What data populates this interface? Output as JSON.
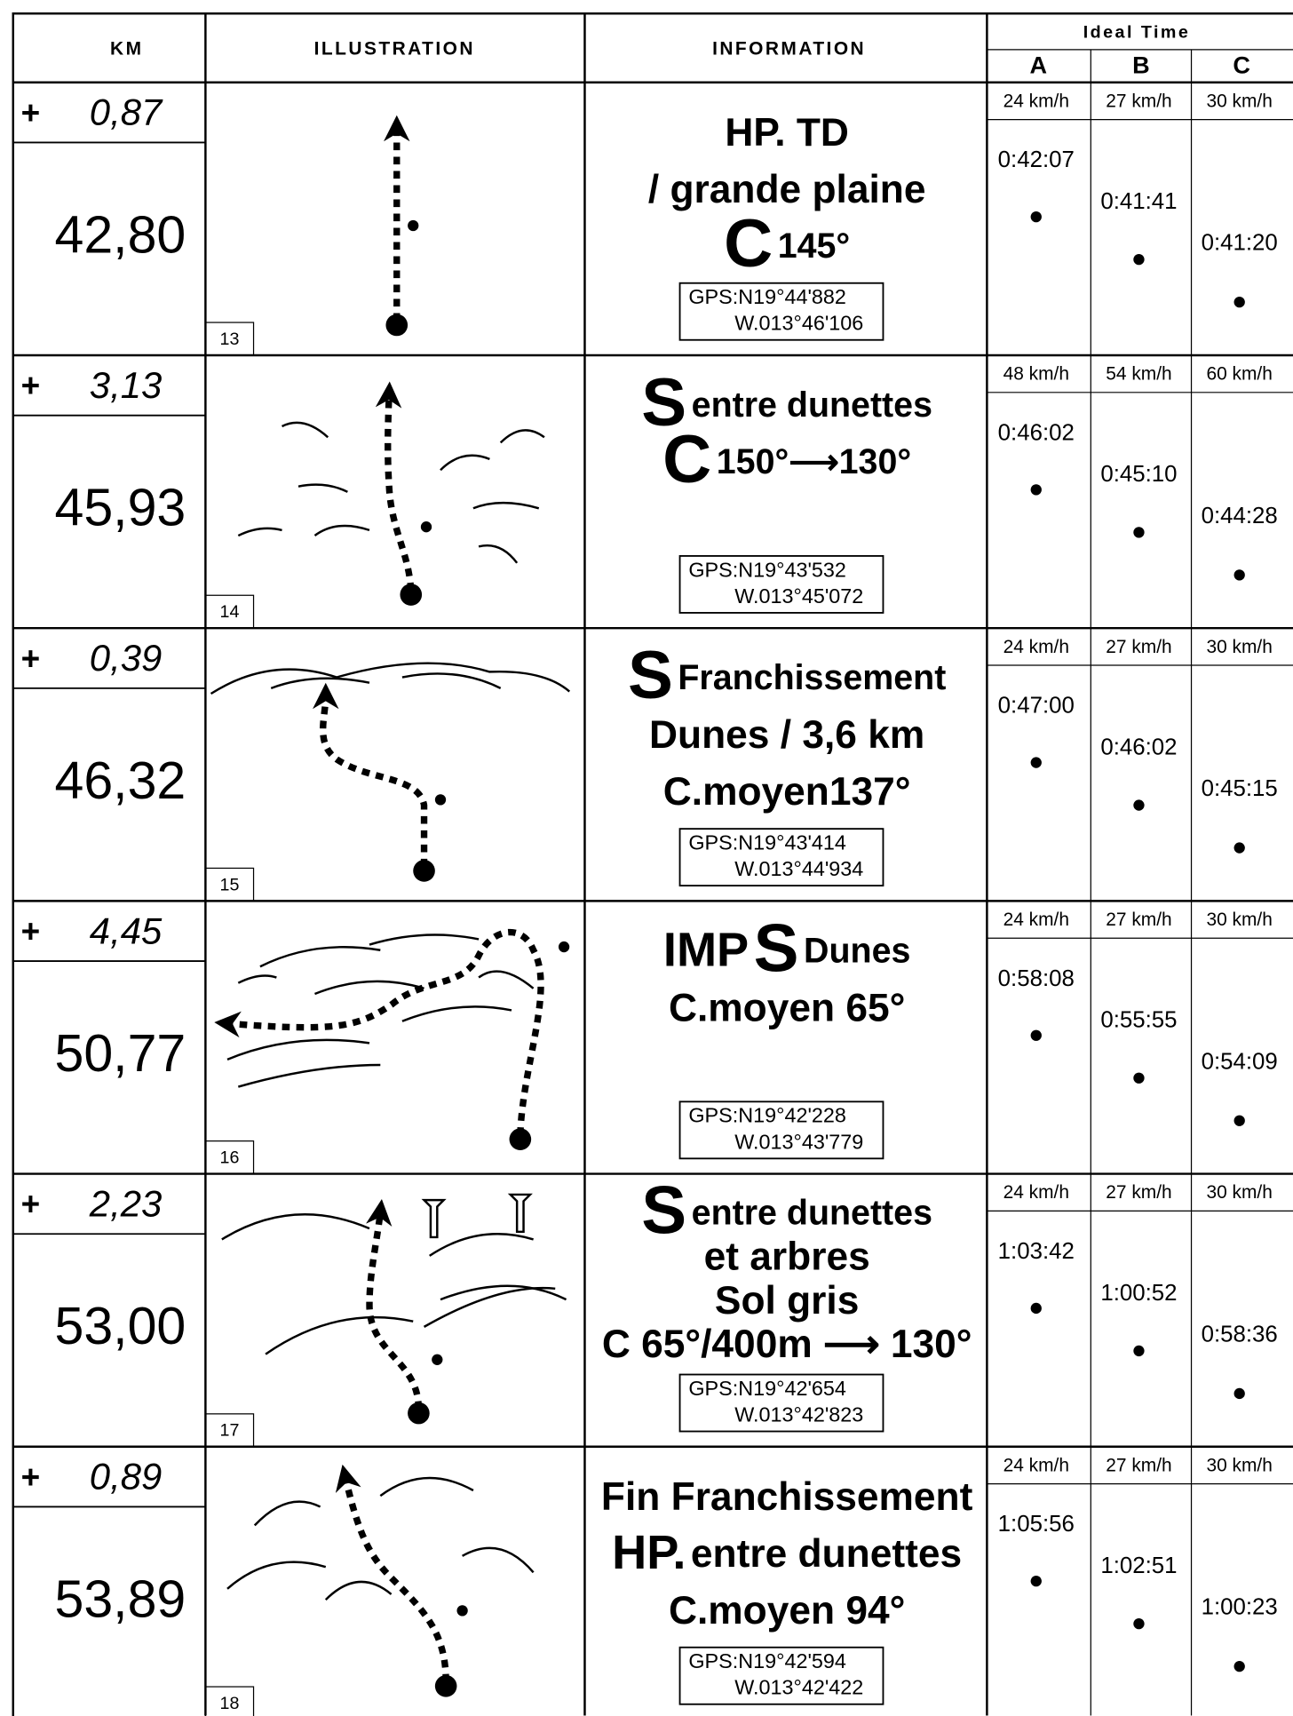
{
  "header": {
    "km": "KM",
    "illustration": "ILLUSTRATION",
    "information": "INFORMATION",
    "ideal_time": "Ideal Time",
    "columns": [
      "A",
      "B",
      "C"
    ]
  },
  "rows": [
    {
      "partial": "0,87",
      "total": "42,80",
      "number": "13",
      "info": [
        [
          "HP.  TD"
        ],
        [
          "/ grande plaine"
        ],
        [
          "C",
          "145°"
        ]
      ],
      "gps": [
        "GPS:N19°44'882",
        "W.013°46'106"
      ],
      "speeds": [
        "24 km/h",
        "27 km/h",
        "30 km/h"
      ],
      "times": [
        "0:42:07",
        "0:41:41",
        "0:41:20"
      ]
    },
    {
      "partial": "3,13",
      "total": "45,93",
      "number": "14",
      "info": [
        [
          "S",
          "entre dunettes"
        ],
        [
          "C",
          "150°⟶130°"
        ]
      ],
      "gps": [
        "GPS:N19°43'532",
        "W.013°45'072"
      ],
      "speeds": [
        "48 km/h",
        "54 km/h",
        "60 km/h"
      ],
      "times": [
        "0:46:02",
        "0:45:10",
        "0:44:28"
      ]
    },
    {
      "partial": "0,39",
      "total": "46,32",
      "number": "15",
      "info": [
        [
          "S",
          "Franchissement"
        ],
        [
          "Dunes / 3,6 km"
        ],
        [
          "C.moyen137°"
        ]
      ],
      "gps": [
        "GPS:N19°43'414",
        "W.013°44'934"
      ],
      "speeds": [
        "24 km/h",
        "27 km/h",
        "30 km/h"
      ],
      "times": [
        "0:47:00",
        "0:46:02",
        "0:45:15"
      ]
    },
    {
      "partial": "4,45",
      "total": "50,77",
      "number": "16",
      "info": [
        [
          "IMP",
          "S",
          "Dunes"
        ],
        [
          "C.moyen 65°"
        ]
      ],
      "gps": [
        "GPS:N19°42'228",
        "W.013°43'779"
      ],
      "speeds": [
        "24 km/h",
        "27 km/h",
        "30 km/h"
      ],
      "times": [
        "0:58:08",
        "0:55:55",
        "0:54:09"
      ]
    },
    {
      "partial": "2,23",
      "total": "53,00",
      "number": "17",
      "info": [
        [
          "S",
          "entre dunettes"
        ],
        [
          "et arbres"
        ],
        [
          "Sol gris"
        ],
        [
          "C 65°/400m ⟶ 130°"
        ]
      ],
      "gps": [
        "GPS:N19°42'654",
        "W.013°42'823"
      ],
      "speeds": [
        "24 km/h",
        "27 km/h",
        "30 km/h"
      ],
      "times": [
        "1:03:42",
        "1:00:52",
        "0:58:36"
      ]
    },
    {
      "partial": "0,89",
      "total": "53,89",
      "number": "18",
      "info": [
        [
          "Fin Franchissement"
        ],
        [
          "HP.",
          "entre dunettes"
        ],
        [
          "C.moyen 94°"
        ]
      ],
      "gps": [
        "GPS:N19°42'594",
        "W.013°42'422"
      ],
      "speeds": [
        "24 km/h",
        "27 km/h",
        "30 km/h"
      ],
      "times": [
        "1:05:56",
        "1:02:51",
        "1:00:23"
      ]
    }
  ]
}
